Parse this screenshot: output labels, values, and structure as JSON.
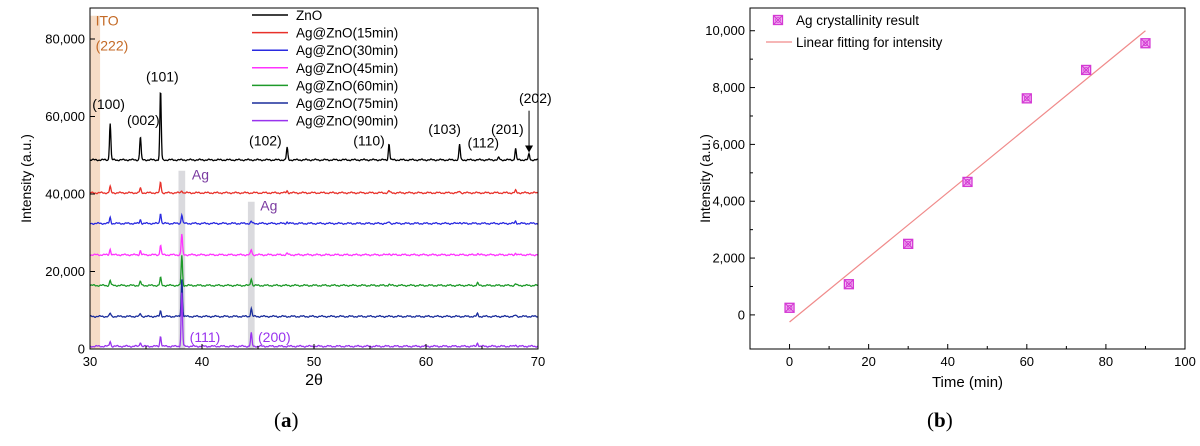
{
  "panels": {
    "a": {
      "caption_open": "(",
      "caption_letter": "a",
      "caption_close": ")"
    },
    "b": {
      "caption_open": "(",
      "caption_letter": "b",
      "caption_close": ")"
    }
  },
  "chart_data": [
    {
      "type": "line",
      "xlabel": "2θ",
      "ylabel": "Intensity (a.u.)",
      "xlim": [
        30,
        70
      ],
      "ylim": [
        0,
        88000
      ],
      "xticks": [
        "30",
        "40",
        "50",
        "60",
        "70"
      ],
      "yticks": [
        "0",
        "20,000",
        "40,000",
        "60,000",
        "80,000"
      ],
      "legend_position": "top-right",
      "grid": false,
      "series": [
        {
          "name": "ZnO",
          "color": "#000000",
          "baseline": 48800,
          "peaks": [
            [
              31.8,
              9500
            ],
            [
              34.5,
              6000
            ],
            [
              36.3,
              18000
            ],
            [
              47.6,
              3200
            ],
            [
              56.7,
              4200
            ],
            [
              63.0,
              4000
            ],
            [
              66.5,
              600
            ],
            [
              68.0,
              3000
            ],
            [
              69.2,
              1500
            ]
          ]
        },
        {
          "name": "Ag@ZnO(15min)",
          "color": "#e8312a",
          "baseline": 40300,
          "peaks": [
            [
              31.8,
              1600
            ],
            [
              34.5,
              1200
            ],
            [
              36.3,
              2800
            ],
            [
              38.2,
              600
            ],
            [
              47.6,
              500
            ],
            [
              56.7,
              500
            ],
            [
              63.0,
              400
            ],
            [
              68.0,
              600
            ]
          ]
        },
        {
          "name": "Ag@ZnO(30min)",
          "color": "#2a2ae0",
          "baseline": 32400,
          "peaks": [
            [
              31.8,
              1500
            ],
            [
              34.5,
              1000
            ],
            [
              36.3,
              2700
            ],
            [
              38.2,
              2300
            ],
            [
              44.4,
              500
            ],
            [
              47.6,
              400
            ],
            [
              56.7,
              400
            ],
            [
              63.0,
              400
            ],
            [
              68.0,
              600
            ]
          ]
        },
        {
          "name": "Ag@ZnO(45min)",
          "color": "#ff33ff",
          "baseline": 24300,
          "peaks": [
            [
              31.8,
              1500
            ],
            [
              34.5,
              1100
            ],
            [
              36.3,
              2500
            ],
            [
              38.2,
              5300
            ],
            [
              44.4,
              1300
            ],
            [
              47.6,
              400
            ],
            [
              56.7,
              400
            ],
            [
              64.6,
              400
            ],
            [
              68.0,
              500
            ]
          ]
        },
        {
          "name": "Ag@ZnO(60min)",
          "color": "#1e9a2a",
          "baseline": 16400,
          "peaks": [
            [
              31.8,
              1300
            ],
            [
              34.5,
              1000
            ],
            [
              36.3,
              2000
            ],
            [
              38.2,
              7700
            ],
            [
              44.4,
              1800
            ],
            [
              56.7,
              300
            ],
            [
              64.6,
              600
            ],
            [
              68.0,
              400
            ]
          ]
        },
        {
          "name": "Ag@ZnO(75min)",
          "color": "#1a2d9c",
          "baseline": 8400,
          "peaks": [
            [
              31.8,
              800
            ],
            [
              34.5,
              700
            ],
            [
              36.3,
              1400
            ],
            [
              38.2,
              9600
            ],
            [
              44.4,
              2100
            ],
            [
              64.6,
              700
            ],
            [
              68.0,
              300
            ]
          ]
        },
        {
          "name": "Ag@ZnO(90min)",
          "color": "#9933ee",
          "baseline": 700,
          "peaks": [
            [
              31.8,
              1300
            ],
            [
              34.5,
              1100
            ],
            [
              36.3,
              2600
            ],
            [
              38.2,
              13800
            ],
            [
              44.4,
              3400
            ],
            [
              64.6,
              900
            ],
            [
              68.0,
              400
            ]
          ]
        }
      ],
      "annotations": [
        {
          "text": "ITO",
          "x": 30.5,
          "y": 83500,
          "color": "#c46a26"
        },
        {
          "text": "(222)",
          "x": 30.5,
          "y": 77000,
          "color": "#c46a26"
        },
        {
          "text": "(100)",
          "x": 30.2,
          "y": 62000,
          "color": "#000000"
        },
        {
          "text": "(002)",
          "x": 33.3,
          "y": 57800,
          "color": "#000000"
        },
        {
          "text": "(101)",
          "x": 35.0,
          "y": 69000,
          "color": "#000000"
        },
        {
          "text": "(102)",
          "x": 44.2,
          "y": 52500,
          "color": "#000000"
        },
        {
          "text": "(110)",
          "x": 53.5,
          "y": 52500,
          "color": "#000000"
        },
        {
          "text": "(103)",
          "x": 60.2,
          "y": 55500,
          "color": "#000000"
        },
        {
          "text": "(112)",
          "x": 63.7,
          "y": 52000,
          "color": "#000000"
        },
        {
          "text": "(201)",
          "x": 65.8,
          "y": 55500,
          "color": "#000000"
        },
        {
          "text": "(202)",
          "x": 68.3,
          "y": 63500,
          "color": "#000000"
        },
        {
          "text": "Ag",
          "x": 39.1,
          "y": 43800,
          "color": "#7a3aa0"
        },
        {
          "text": "Ag",
          "x": 45.2,
          "y": 35800,
          "color": "#7a3aa0"
        },
        {
          "text": "(111)",
          "x": 38.9,
          "y": 1800,
          "color": "#9933ee"
        },
        {
          "text": "(200)",
          "x": 45.0,
          "y": 1800,
          "color": "#9933ee"
        }
      ],
      "highlight_bands": [
        {
          "x": [
            30.0,
            30.9
          ],
          "y": [
            0,
            86000
          ],
          "color": "#f6dcc6"
        },
        {
          "x": [
            37.9,
            38.5
          ],
          "y": [
            0,
            46000
          ],
          "color": "#dadade"
        },
        {
          "x": [
            44.1,
            44.7
          ],
          "y": [
            0,
            38000
          ],
          "color": "#dadade"
        }
      ],
      "arrow": {
        "x": 69.2,
        "from_y": 61500,
        "to_y": 50700
      }
    },
    {
      "type": "scatter",
      "xlabel": "Time (min)",
      "ylabel": "Intensity (a.u.)",
      "xlim": [
        -10,
        100
      ],
      "ylim": [
        -1200,
        10800
      ],
      "xticks": [
        "0",
        "20",
        "40",
        "60",
        "80",
        "100"
      ],
      "yticks": [
        "0",
        "2,000",
        "4,000",
        "6,000",
        "8,000",
        "10,000"
      ],
      "legend_position": "top-left",
      "grid": false,
      "series": [
        {
          "name": "Ag crystallinity result",
          "color": "#d43ad4",
          "x": [
            0,
            15,
            30,
            45,
            60,
            75,
            90
          ],
          "y": [
            250,
            1080,
            2500,
            4680,
            7620,
            8620,
            9560
          ]
        }
      ],
      "fit": {
        "name": "Linear fitting for intensity",
        "color": "#f08a8a",
        "x": [
          0,
          90
        ],
        "y": [
          -250,
          10000
        ]
      }
    }
  ]
}
